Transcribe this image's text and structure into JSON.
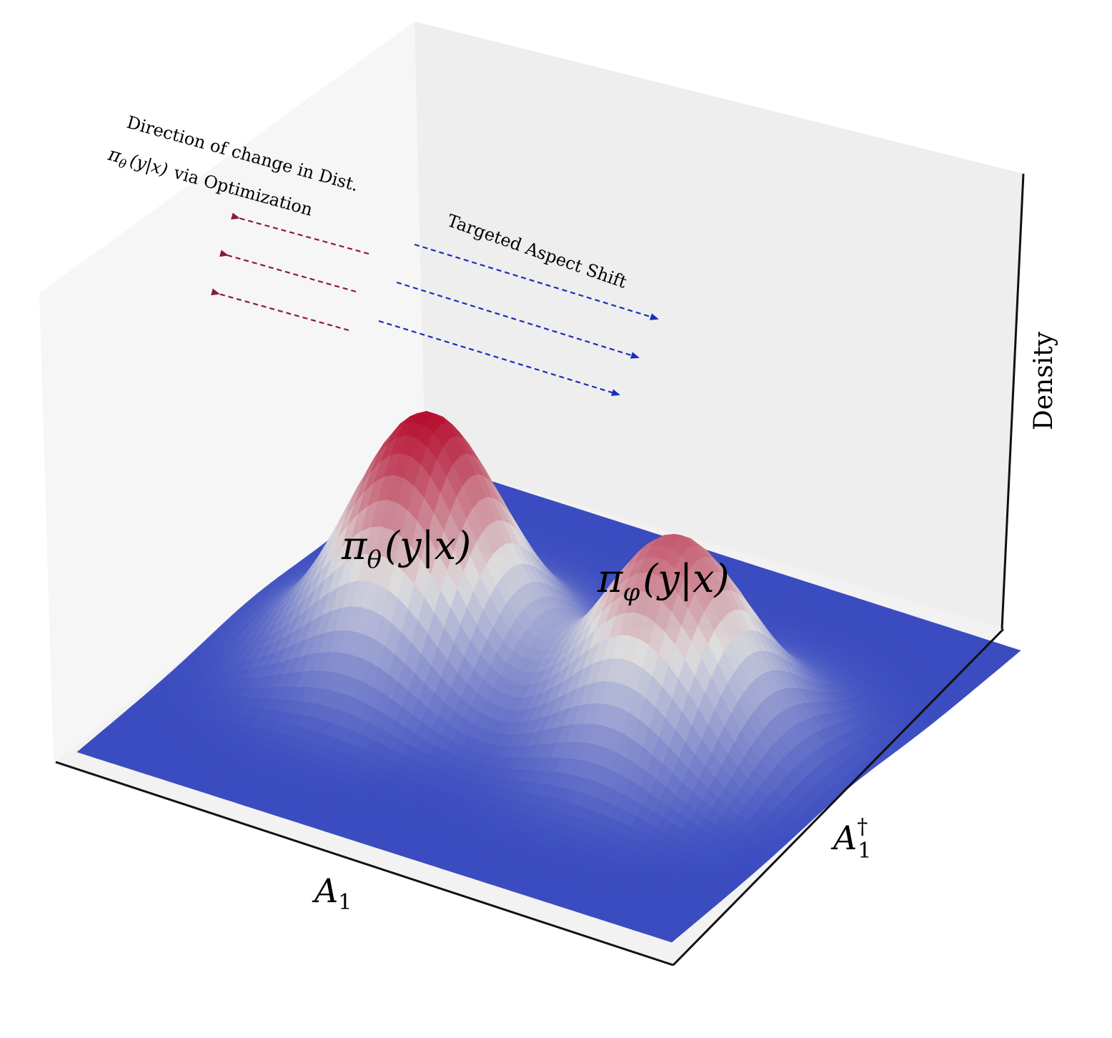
{
  "chart_data": {
    "type": "surface",
    "title": "",
    "xlabel": "A",
    "xlabel_sub": "1",
    "ylabel": "A",
    "ylabel_sub": "1",
    "ylabel_sup": "†",
    "zlabel": "Density",
    "grid": false,
    "colormap": "coolwarm",
    "colors": {
      "low": "#3b4cc0",
      "mid": "#dddcdc",
      "high": "#b40426"
    },
    "peaks": [
      {
        "name_symbol": "π",
        "name_sub": "θ",
        "name_args": "(y|x)",
        "x": -1.5,
        "y": 0,
        "height": 1.0,
        "sigma": 0.8
      },
      {
        "name_symbol": "π",
        "name_sub": "φ",
        "name_args": "(y|x)",
        "x": 1.5,
        "y": 0,
        "height": 0.82,
        "sigma": 0.8
      }
    ],
    "annotations": {
      "optimization_line1": "Direction of change in Dist.",
      "optimization_symbol": "π",
      "optimization_sub": "θ",
      "optimization_args": "(y|x)",
      "optimization_rest": "via Optimization",
      "shift": "Targeted Aspect Shift"
    },
    "arrow_colors": {
      "optimization": "#8b1a3a",
      "shift": "#1a2fb8"
    }
  }
}
